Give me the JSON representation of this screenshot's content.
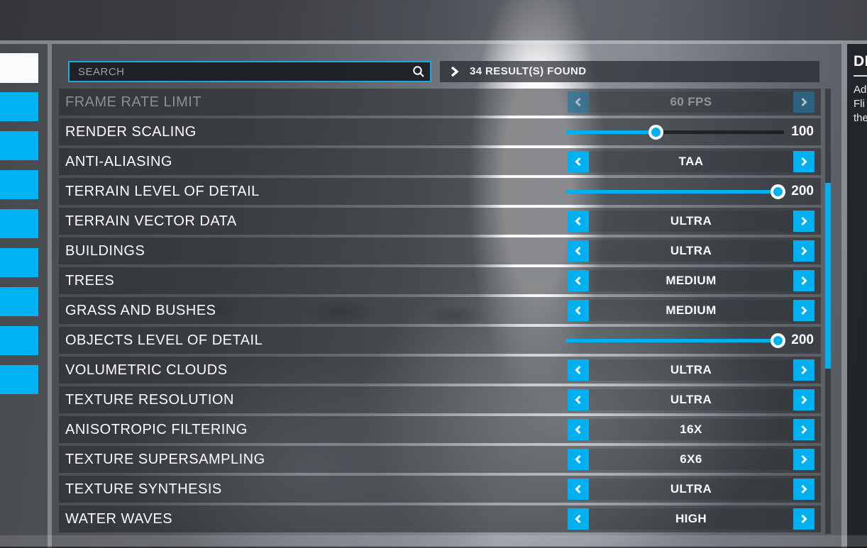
{
  "colors": {
    "accent": "#00b0f0",
    "search_border": "#1fa7e0",
    "sidebar_active_tab": "#fbfcfd",
    "slider_thumb_ring": "#ffffff"
  },
  "icons": {
    "search": "magnifier",
    "results_toggle": "chevron-right",
    "stepper_prev": "chevron-left",
    "stepper_next": "chevron-right"
  },
  "sidebar": {
    "tabs": [
      {
        "active": true
      },
      {
        "active": false
      },
      {
        "active": false
      },
      {
        "active": false
      },
      {
        "active": false
      },
      {
        "active": false
      },
      {
        "active": false
      },
      {
        "active": false
      },
      {
        "active": false
      }
    ]
  },
  "header": {
    "search_placeholder": "SEARCH",
    "results_text": "34 RESULT(S) FOUND"
  },
  "settings": [
    {
      "label": "FRAME RATE LIMIT",
      "type": "stepper",
      "value": "60 FPS",
      "disabled": true
    },
    {
      "label": "RENDER SCALING",
      "type": "slider",
      "value": "100",
      "fill_pct": 41,
      "disabled": false
    },
    {
      "label": "ANTI-ALIASING",
      "type": "stepper",
      "value": "TAA",
      "disabled": false
    },
    {
      "label": "TERRAIN LEVEL OF DETAIL",
      "type": "slider",
      "value": "200",
      "fill_pct": 97,
      "disabled": false
    },
    {
      "label": "TERRAIN VECTOR DATA",
      "type": "stepper",
      "value": "ULTRA",
      "disabled": false
    },
    {
      "label": "BUILDINGS",
      "type": "stepper",
      "value": "ULTRA",
      "disabled": false
    },
    {
      "label": "TREES",
      "type": "stepper",
      "value": "MEDIUM",
      "disabled": false
    },
    {
      "label": "GRASS AND BUSHES",
      "type": "stepper",
      "value": "MEDIUM",
      "disabled": false
    },
    {
      "label": "OBJECTS LEVEL OF DETAIL",
      "type": "slider",
      "value": "200",
      "fill_pct": 97,
      "disabled": false
    },
    {
      "label": "VOLUMETRIC CLOUDS",
      "type": "stepper",
      "value": "ULTRA",
      "disabled": false
    },
    {
      "label": "TEXTURE RESOLUTION",
      "type": "stepper",
      "value": "ULTRA",
      "disabled": false
    },
    {
      "label": "ANISOTROPIC FILTERING",
      "type": "stepper",
      "value": "16X",
      "disabled": false
    },
    {
      "label": "TEXTURE SUPERSAMPLING",
      "type": "stepper",
      "value": "6X6",
      "disabled": false
    },
    {
      "label": "TEXTURE SYNTHESIS",
      "type": "stepper",
      "value": "ULTRA",
      "disabled": false
    },
    {
      "label": "WATER WAVES",
      "type": "stepper",
      "value": "HIGH",
      "disabled": false
    }
  ],
  "detail_panel": {
    "title": "DE",
    "lines": [
      "Ad",
      "Fli",
      "the"
    ]
  }
}
